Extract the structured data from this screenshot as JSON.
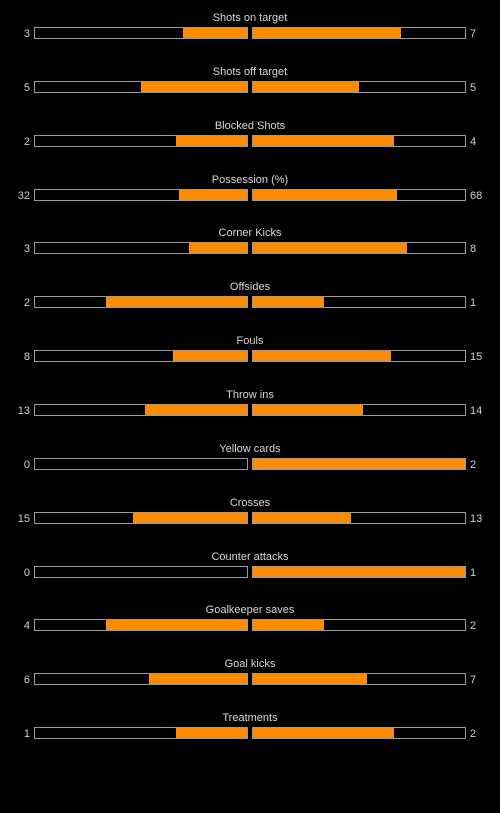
{
  "theme": {
    "fill_color": "#ff8c00",
    "background": "#000000",
    "border_color": "#9a9a9a"
  },
  "stats": [
    {
      "label": "Shots on target",
      "home": "3",
      "away": "7",
      "home_fill": 0.3,
      "away_fill": 0.7
    },
    {
      "label": "Shots off target",
      "home": "5",
      "away": "5",
      "home_fill": 0.5,
      "away_fill": 0.5
    },
    {
      "label": "Blocked Shots",
      "home": "2",
      "away": "4",
      "home_fill": 0.333,
      "away_fill": 0.667
    },
    {
      "label": "Possession (%)",
      "home": "32",
      "away": "68",
      "home_fill": 0.32,
      "away_fill": 0.68
    },
    {
      "label": "Corner Kicks",
      "home": "3",
      "away": "8",
      "home_fill": 0.273,
      "away_fill": 0.727
    },
    {
      "label": "Offsides",
      "home": "2",
      "away": "1",
      "home_fill": 0.667,
      "away_fill": 0.333
    },
    {
      "label": "Fouls",
      "home": "8",
      "away": "15",
      "home_fill": 0.348,
      "away_fill": 0.652
    },
    {
      "label": "Throw ins",
      "home": "13",
      "away": "14",
      "home_fill": 0.481,
      "away_fill": 0.519
    },
    {
      "label": "Yellow cards",
      "home": "0",
      "away": "2",
      "home_fill": 0.0,
      "away_fill": 1.0
    },
    {
      "label": "Crosses",
      "home": "15",
      "away": "13",
      "home_fill": 0.536,
      "away_fill": 0.464
    },
    {
      "label": "Counter attacks",
      "home": "0",
      "away": "1",
      "home_fill": 0.0,
      "away_fill": 1.0
    },
    {
      "label": "Goalkeeper saves",
      "home": "4",
      "away": "2",
      "home_fill": 0.667,
      "away_fill": 0.333
    },
    {
      "label": "Goal kicks",
      "home": "6",
      "away": "7",
      "home_fill": 0.462,
      "away_fill": 0.538
    },
    {
      "label": "Treatments",
      "home": "1",
      "away": "2",
      "home_fill": 0.333,
      "away_fill": 0.667
    }
  ]
}
